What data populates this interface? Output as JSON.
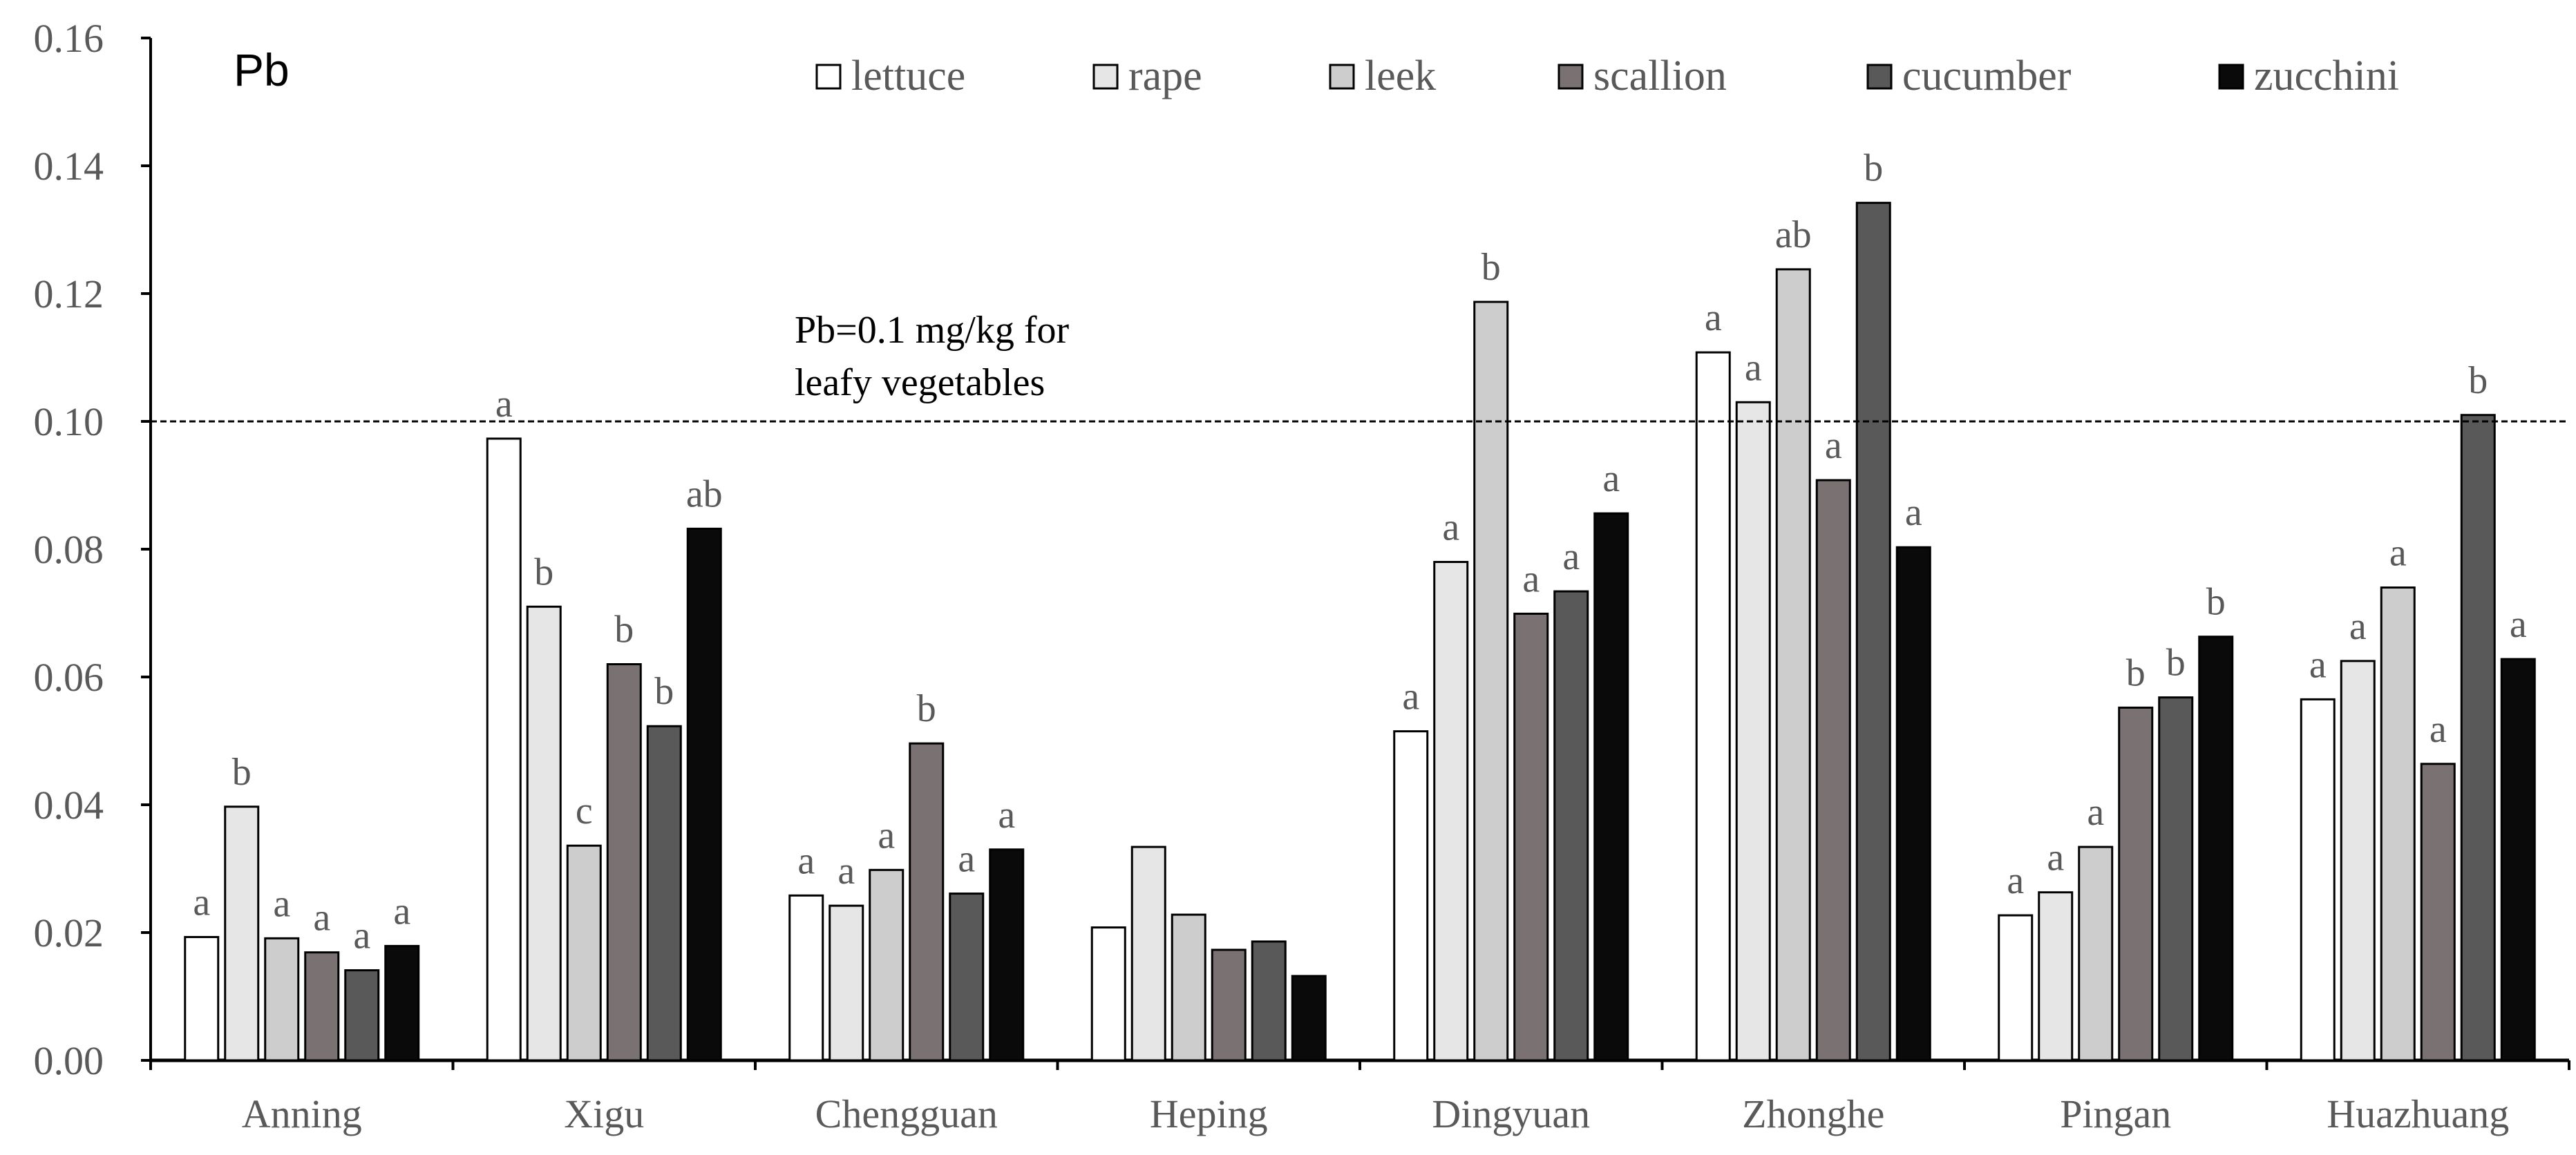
{
  "chart_data": {
    "type": "bar",
    "title": "Pb",
    "xlabel": "",
    "ylabel": "",
    "ylim": [
      0,
      0.16
    ],
    "yticks": [
      "0.00",
      "0.02",
      "0.04",
      "0.06",
      "0.08",
      "0.10",
      "0.12",
      "0.14",
      "0.16"
    ],
    "grid": false,
    "legend_position": "top",
    "categories": [
      "Anning",
      "Xigu",
      "Chengguan",
      "Heping",
      "Dingyuan",
      "Zhonghe",
      "Pingan",
      "Huazhuang"
    ],
    "series": [
      {
        "name": "lettuce",
        "color": "#ffffff",
        "values": [
          0.0193,
          0.0973,
          0.0258,
          0.0208,
          0.0515,
          0.1108,
          0.0227,
          0.0565
        ],
        "labels": [
          "a",
          "a",
          "a",
          "",
          "a",
          "a",
          "a",
          "a"
        ]
      },
      {
        "name": "rape",
        "color": "#e6e6e6",
        "values": [
          0.0397,
          0.071,
          0.0242,
          0.0334,
          0.078,
          0.103,
          0.0263,
          0.0625
        ],
        "labels": [
          "b",
          "b",
          "a",
          "",
          "a",
          "a",
          "a",
          "a"
        ]
      },
      {
        "name": "leek",
        "color": "#cdcdcd",
        "values": [
          0.0191,
          0.0336,
          0.0298,
          0.0228,
          0.1187,
          0.1238,
          0.0334,
          0.074
        ],
        "labels": [
          "a",
          "c",
          "a",
          "",
          "b",
          "ab",
          "a",
          "a"
        ]
      },
      {
        "name": "scallion",
        "color": "#7a7272",
        "values": [
          0.0169,
          0.062,
          0.0496,
          0.0173,
          0.0699,
          0.0908,
          0.0552,
          0.0464
        ],
        "labels": [
          "a",
          "b",
          "b",
          "",
          "a",
          "a",
          "b",
          "a"
        ]
      },
      {
        "name": "cucumber",
        "color": "#595959",
        "values": [
          0.0141,
          0.0523,
          0.0261,
          0.0186,
          0.0734,
          0.1342,
          0.0568,
          0.101
        ],
        "labels": [
          "a",
          "b",
          "a",
          "",
          "a",
          "b",
          "b",
          "b"
        ]
      },
      {
        "name": "zucchini",
        "color": "#0a0a0a",
        "values": [
          0.0179,
          0.0832,
          0.033,
          0.0132,
          0.0856,
          0.0803,
          0.0663,
          0.0628
        ],
        "labels": [
          "a",
          "ab",
          "a",
          "",
          "a",
          "a",
          "b",
          "a"
        ]
      }
    ],
    "reference_line": {
      "value": 0.1,
      "label_line1": "Pb=0.1 mg/kg for",
      "label_line2": "leafy vegetables"
    }
  }
}
